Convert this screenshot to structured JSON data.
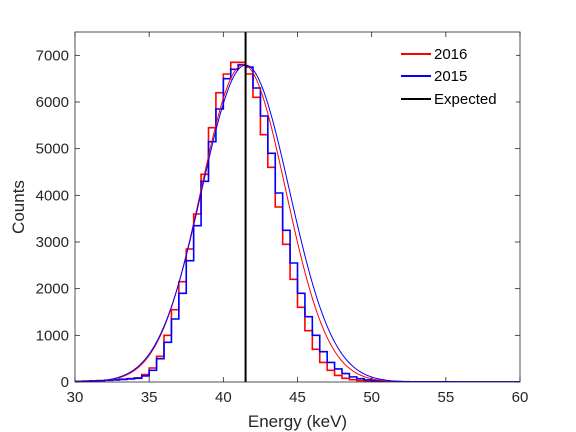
{
  "chart_data": {
    "type": "line",
    "title": "",
    "xlabel": "Energy (keV)",
    "ylabel": "Counts",
    "xlim": [
      30,
      60
    ],
    "ylim": [
      0,
      7500
    ],
    "xticks": [
      30,
      35,
      40,
      45,
      50,
      55,
      60
    ],
    "yticks": [
      0,
      1000,
      2000,
      3000,
      4000,
      5000,
      6000,
      7000
    ],
    "grid": false,
    "legend_position": "top-right",
    "bin_width": 0.5,
    "series": [
      {
        "name": "2016",
        "color": "#ff0000",
        "style": "stairs",
        "bin_edges": [
          30.0,
          30.5,
          31.0,
          31.5,
          32.0,
          32.5,
          33.0,
          33.5,
          34.0,
          34.5,
          35.0,
          35.5,
          36.0,
          36.5,
          37.0,
          37.5,
          38.0,
          38.5,
          39.0,
          39.5,
          40.0,
          40.5,
          41.0,
          41.5,
          42.0,
          42.5,
          43.0,
          43.5,
          44.0,
          44.5,
          45.0,
          45.5,
          46.0,
          46.5,
          47.0,
          47.5,
          48.0,
          48.5,
          49.0,
          49.5,
          50.0,
          50.5,
          51.0,
          51.5,
          52.0,
          52.5,
          53.0,
          53.5,
          54.0,
          54.5,
          55.0,
          55.5,
          56.0,
          56.5,
          57.0,
          57.5,
          58.0,
          58.5,
          59.0,
          59.5,
          60.0
        ],
        "counts": [
          15,
          20,
          25,
          30,
          40,
          50,
          60,
          75,
          90,
          160,
          300,
          550,
          1000,
          1550,
          2150,
          2850,
          3600,
          4450,
          5450,
          6200,
          6600,
          6850,
          6850,
          6600,
          6100,
          5300,
          4600,
          3750,
          2950,
          2200,
          1600,
          1100,
          700,
          420,
          250,
          140,
          80,
          50,
          30,
          20,
          15,
          10,
          5,
          5,
          5,
          3,
          3,
          2,
          2,
          2,
          2,
          2,
          2,
          2,
          2,
          2,
          2,
          2,
          2,
          2
        ]
      },
      {
        "name": "2015",
        "color": "#0000ff",
        "style": "stairs",
        "bin_edges": [
          30.0,
          30.5,
          31.0,
          31.5,
          32.0,
          32.5,
          33.0,
          33.5,
          34.0,
          34.5,
          35.0,
          35.5,
          36.0,
          36.5,
          37.0,
          37.5,
          38.0,
          38.5,
          39.0,
          39.5,
          40.0,
          40.5,
          41.0,
          41.5,
          42.0,
          42.5,
          43.0,
          43.5,
          44.0,
          44.5,
          45.0,
          45.5,
          46.0,
          46.5,
          47.0,
          47.5,
          48.0,
          48.5,
          49.0,
          49.5,
          50.0,
          50.5,
          51.0,
          51.5,
          52.0,
          52.5,
          53.0,
          53.5,
          54.0,
          54.5,
          55.0,
          55.5,
          56.0,
          56.5,
          57.0,
          57.5,
          58.0,
          58.5,
          59.0,
          59.5,
          60.0
        ],
        "counts": [
          10,
          15,
          20,
          25,
          35,
          45,
          55,
          65,
          80,
          130,
          250,
          500,
          850,
          1350,
          1900,
          2600,
          3350,
          4300,
          5150,
          5850,
          6500,
          6700,
          6800,
          6750,
          6300,
          5700,
          4900,
          4050,
          3250,
          2550,
          1900,
          1400,
          1000,
          650,
          420,
          280,
          180,
          110,
          70,
          45,
          30,
          20,
          15,
          10,
          8,
          5,
          5,
          3,
          3,
          3,
          3,
          2,
          2,
          2,
          2,
          2,
          2,
          2,
          2,
          2
        ]
      },
      {
        "name": "2016 fit",
        "color": "#ff0000",
        "style": "gaussian",
        "amplitude": 6800,
        "mean": 41.35,
        "sigma": 2.85
      },
      {
        "name": "2015 fit",
        "color": "#0000ff",
        "style": "gaussian",
        "amplitude": 6790,
        "mean": 41.5,
        "sigma": 2.95
      },
      {
        "name": "Expected",
        "color": "#000000",
        "style": "vline",
        "x": 41.5
      }
    ],
    "legend": [
      "2016",
      "2015",
      "Expected"
    ]
  }
}
